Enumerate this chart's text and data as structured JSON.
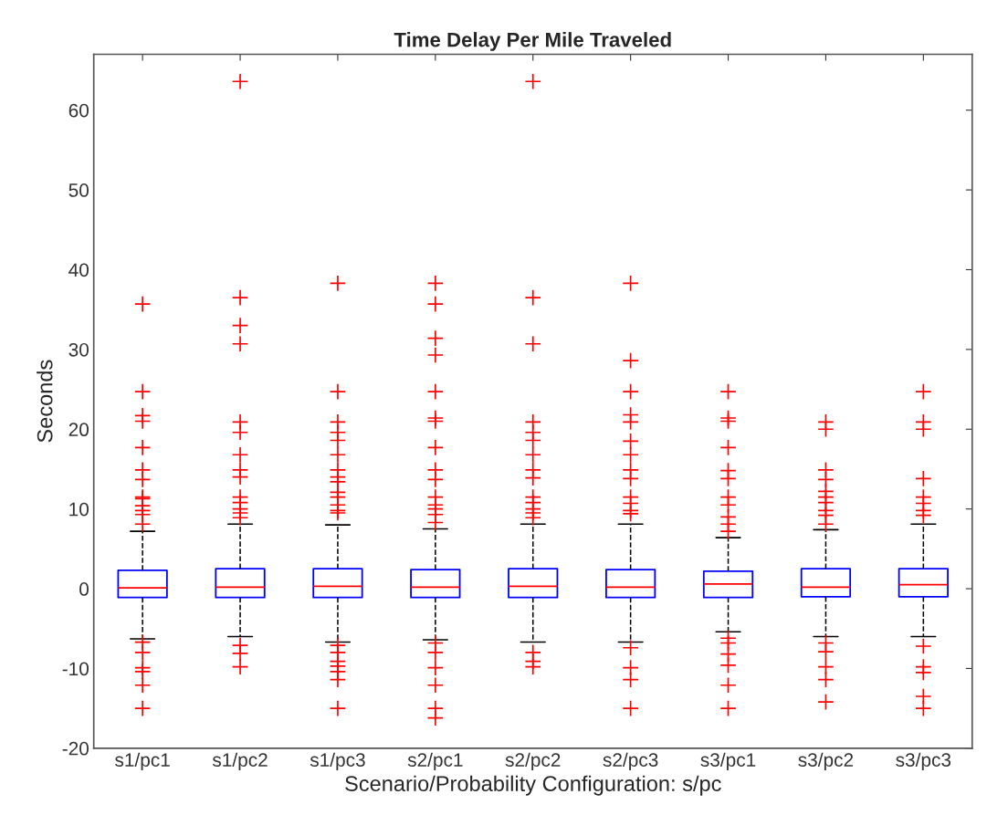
{
  "chart_data": {
    "type": "box",
    "title": "Time Delay Per Mile Traveled",
    "xlabel": "Scenario/Probability Configuration: s/pc",
    "ylabel": "Seconds",
    "categories": [
      "s1/pc1",
      "s1/pc2",
      "s1/pc3",
      "s2/pc1",
      "s2/pc2",
      "s2/pc3",
      "s3/pc1",
      "s3/pc2",
      "s3/pc3"
    ],
    "ylim": [
      -20,
      67
    ],
    "yticks": [
      -20,
      -10,
      0,
      10,
      20,
      30,
      40,
      50,
      60
    ],
    "grid": false,
    "marker": "cross",
    "line_style": "dashed",
    "series": [
      {
        "color": "#0000ff",
        "boxes": [
          {
            "low": -6.3,
            "q1": -1.1,
            "median": 0.1,
            "q3": 2.3,
            "high": 7.2,
            "outliers": [
              35.7,
              24.7,
              21.7,
              21.0,
              17.7,
              14.9,
              13.7,
              11.5,
              11.3,
              10.4,
              9.8,
              9.3,
              8.1,
              -6.7,
              -8.0,
              -9.9,
              -10.4,
              -12.1,
              -15.0
            ]
          },
          {
            "low": -6.0,
            "q1": -1.1,
            "median": 0.2,
            "q3": 2.5,
            "high": 8.1,
            "outliers": [
              63.6,
              36.5,
              33.0,
              30.7,
              20.9,
              19.6,
              16.8,
              14.9,
              14.0,
              11.5,
              10.8,
              10.0,
              9.5,
              8.9,
              -7.1,
              -8.1,
              -9.8
            ]
          },
          {
            "low": -6.7,
            "q1": -1.1,
            "median": 0.3,
            "q3": 2.5,
            "high": 8.0,
            "outliers": [
              38.3,
              24.7,
              20.9,
              19.6,
              18.6,
              16.8,
              14.9,
              14.0,
              13.4,
              12.1,
              11.5,
              10.5,
              9.8,
              9.5,
              -7.1,
              -8.0,
              -9.1,
              -9.7,
              -10.4,
              -11.4,
              -15.0
            ]
          },
          {
            "low": -6.4,
            "q1": -1.1,
            "median": 0.2,
            "q3": 2.4,
            "high": 7.5,
            "outliers": [
              38.3,
              35.7,
              31.4,
              29.3,
              24.7,
              21.4,
              21.0,
              17.7,
              14.9,
              13.7,
              11.5,
              10.5,
              10.0,
              9.3,
              8.3,
              -6.8,
              -8.0,
              -9.9,
              -12.1,
              -15.0,
              -16.2
            ]
          },
          {
            "low": -6.7,
            "q1": -1.1,
            "median": 0.3,
            "q3": 2.5,
            "high": 8.1,
            "outliers": [
              63.6,
              36.5,
              30.7,
              20.9,
              19.6,
              18.6,
              16.8,
              14.9,
              13.9,
              11.5,
              10.8,
              10.0,
              9.5,
              8.9,
              -8.0,
              -9.1,
              -9.8
            ]
          },
          {
            "low": -6.7,
            "q1": -1.1,
            "median": 0.2,
            "q3": 2.4,
            "high": 8.1,
            "outliers": [
              38.3,
              28.6,
              24.7,
              21.8,
              20.9,
              18.5,
              16.8,
              14.9,
              13.8,
              11.5,
              10.7,
              9.8,
              9.4,
              -7.4,
              -9.9,
              -11.4,
              -15.0
            ]
          },
          {
            "low": -5.4,
            "q1": -1.1,
            "median": 0.6,
            "q3": 2.2,
            "high": 6.4,
            "outliers": [
              24.7,
              21.4,
              21.0,
              17.7,
              14.8,
              13.8,
              11.5,
              10.5,
              9.0,
              8.1,
              7.2,
              -6.2,
              -6.8,
              -8.2,
              -9.6,
              -12.1,
              -15.0
            ]
          },
          {
            "low": -6.0,
            "q1": -1.0,
            "median": 0.2,
            "q3": 2.5,
            "high": 7.4,
            "outliers": [
              20.9,
              20.0,
              14.9,
              13.7,
              12.2,
              11.5,
              10.8,
              9.8,
              9.2,
              8.1,
              -6.8,
              -7.9,
              -9.8,
              -11.4,
              -14.2
            ]
          },
          {
            "low": -6.0,
            "q1": -1.0,
            "median": 0.5,
            "q3": 2.5,
            "high": 8.1,
            "outliers": [
              24.7,
              20.9,
              20.0,
              13.8,
              11.5,
              10.7,
              9.8,
              9.2,
              -7.2,
              -9.8,
              -10.5,
              -13.5,
              -15.0
            ]
          }
        ]
      }
    ]
  }
}
